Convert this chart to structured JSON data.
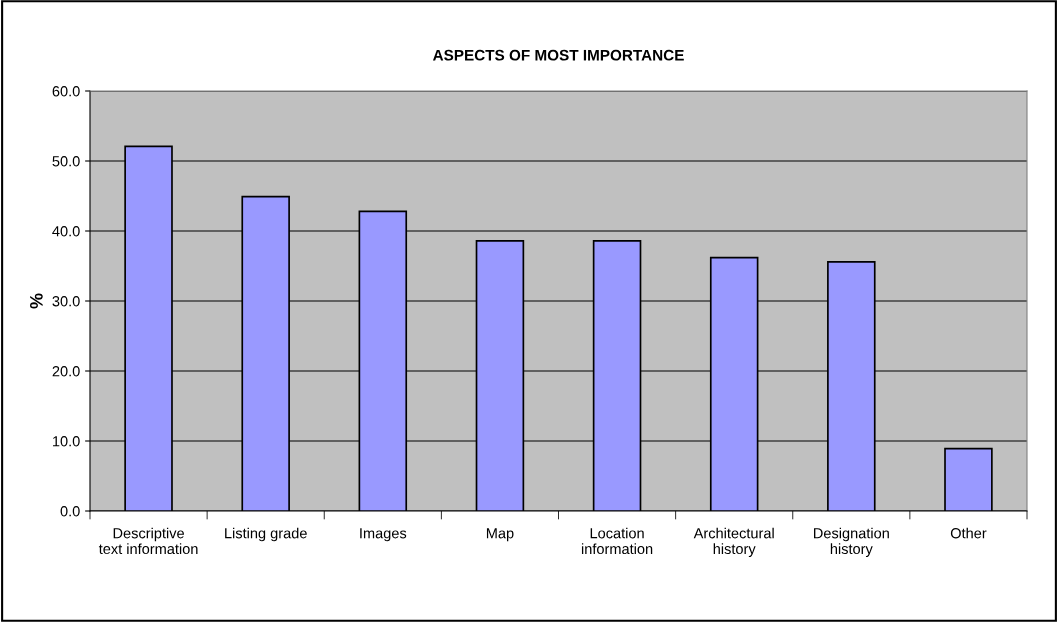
{
  "chart_data": {
    "type": "bar",
    "title": "ASPECTS OF MOST IMPORTANCE",
    "ylabel": "%",
    "categories": [
      "Descriptive\ntext information",
      "Listing grade",
      "Images",
      "Map",
      "Location\ninformation",
      "Architectural\nhistory",
      "Designation\nhistory",
      "Other"
    ],
    "values": [
      52.1,
      44.9,
      42.8,
      38.6,
      38.6,
      36.2,
      35.6,
      8.9
    ],
    "color": "#9999ff",
    "ylim": [
      0,
      60
    ],
    "yticks": [
      {
        "value": 0,
        "label": "0.0"
      },
      {
        "value": 10,
        "label": "10.0"
      },
      {
        "value": 20,
        "label": "20.0"
      },
      {
        "value": 30,
        "label": "30.0"
      },
      {
        "value": 40,
        "label": "40.0"
      },
      {
        "value": 50,
        "label": "50.0"
      },
      {
        "value": 60,
        "label": "60.0"
      }
    ],
    "grid": "y",
    "legend": false
  }
}
